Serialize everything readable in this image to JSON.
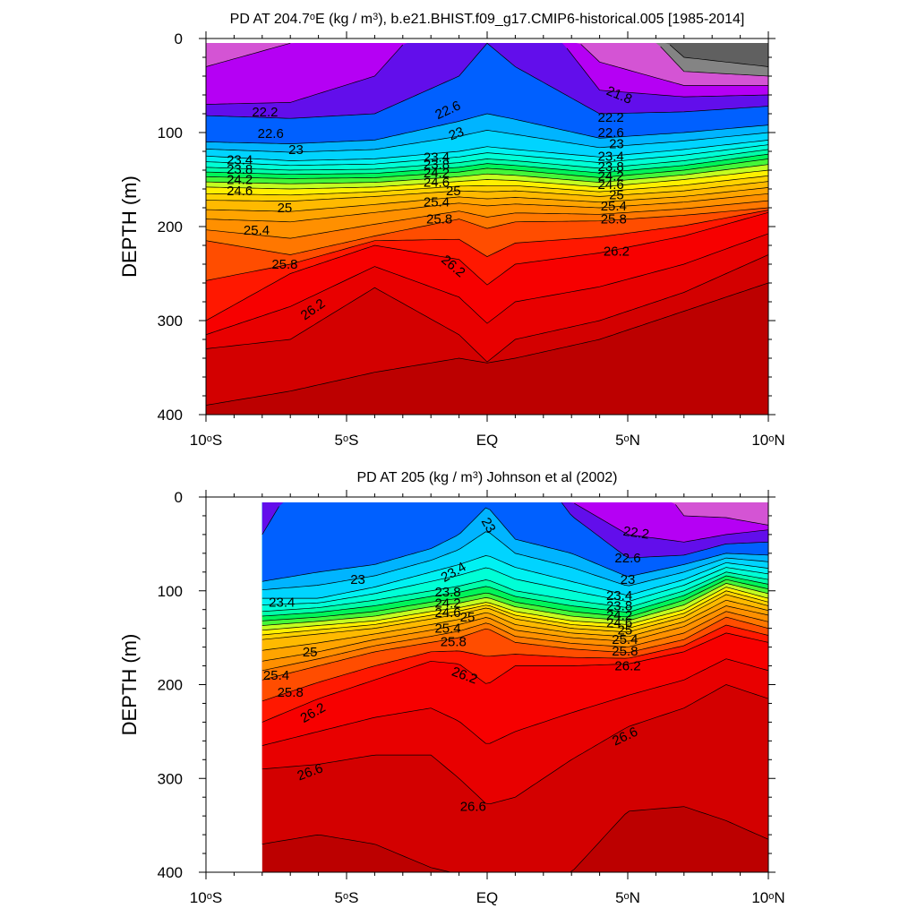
{
  "chart_data": [
    {
      "type": "contour",
      "title_parts": [
        "PD AT 204.7",
        "o",
        "E (kg / m",
        "3",
        "), b.e21.BHIST.f09_g17.CMIP6-historical.005 [1985-2014]"
      ],
      "ylabel": "DEPTH (m)",
      "xlim": [
        -10,
        10
      ],
      "ylim": [
        400,
        0
      ],
      "y_ticks": [
        "0",
        "100",
        "200",
        "300",
        "400"
      ],
      "x_ticks": [
        {
          "value": -10,
          "parts": [
            "10",
            "o",
            "S"
          ]
        },
        {
          "value": -5,
          "parts": [
            "5",
            "o",
            "S"
          ]
        },
        {
          "value": 0,
          "parts": [
            "EQ"
          ]
        },
        {
          "value": 5,
          "parts": [
            "5",
            "o",
            "N"
          ]
        },
        {
          "value": 10,
          "parts": [
            "10",
            "o",
            "N"
          ]
        }
      ],
      "data_lon_range": [
        -10,
        10
      ],
      "contour_levels": [
        21.0,
        21.4,
        21.8,
        22.2,
        22.6,
        23.0,
        23.2,
        23.4,
        23.6,
        23.8,
        24.0,
        24.2,
        24.4,
        24.6,
        24.8,
        25.0,
        25.2,
        25.4,
        25.6,
        25.8,
        26.0,
        26.2,
        26.4,
        26.6,
        26.8
      ],
      "contour_labels": [
        {
          "text": "21.8",
          "lon": 4.7,
          "depth": 60,
          "rot": 22
        },
        {
          "text": "22.2",
          "lon": -7.9,
          "depth": 78
        },
        {
          "text": "22.6",
          "lon": -7.7,
          "depth": 101
        },
        {
          "text": "23",
          "lon": -6.8,
          "depth": 118
        },
        {
          "text": "23.4",
          "lon": -8.8,
          "depth": 129
        },
        {
          "text": "23.8",
          "lon": -8.8,
          "depth": 139
        },
        {
          "text": "24.2",
          "lon": -8.8,
          "depth": 150
        },
        {
          "text": "24.6",
          "lon": -8.8,
          "depth": 162
        },
        {
          "text": "25",
          "lon": -7.2,
          "depth": 180
        },
        {
          "text": "25.4",
          "lon": -8.2,
          "depth": 204
        },
        {
          "text": "25.8",
          "lon": -7.2,
          "depth": 240
        },
        {
          "text": "26.2",
          "lon": -6.2,
          "depth": 288,
          "rot": -35
        },
        {
          "text": "22.6",
          "lon": -1.4,
          "depth": 76,
          "rot": -25
        },
        {
          "text": "23",
          "lon": -1.1,
          "depth": 101,
          "rot": -20
        },
        {
          "text": "23.4",
          "lon": -1.8,
          "depth": 126
        },
        {
          "text": "23.8",
          "lon": -1.8,
          "depth": 134
        },
        {
          "text": "24.2",
          "lon": -1.8,
          "depth": 143
        },
        {
          "text": "24.6",
          "lon": -1.8,
          "depth": 153
        },
        {
          "text": "25",
          "lon": -1.2,
          "depth": 162
        },
        {
          "text": "25.4",
          "lon": -1.8,
          "depth": 174
        },
        {
          "text": "25.8",
          "lon": -1.7,
          "depth": 192
        },
        {
          "text": "26.2",
          "lon": -1.2,
          "depth": 242,
          "rot": 40
        },
        {
          "text": "22.2",
          "lon": 4.4,
          "depth": 84
        },
        {
          "text": "22.6",
          "lon": 4.4,
          "depth": 100
        },
        {
          "text": "23",
          "lon": 4.6,
          "depth": 112
        },
        {
          "text": "23.4",
          "lon": 4.4,
          "depth": 125
        },
        {
          "text": "23.8",
          "lon": 4.4,
          "depth": 136
        },
        {
          "text": "24.2",
          "lon": 4.4,
          "depth": 146
        },
        {
          "text": "24.6",
          "lon": 4.4,
          "depth": 155
        },
        {
          "text": "25",
          "lon": 4.6,
          "depth": 166
        },
        {
          "text": "25.4",
          "lon": 4.5,
          "depth": 178
        },
        {
          "text": "25.8",
          "lon": 4.5,
          "depth": 192
        },
        {
          "text": "26.2",
          "lon": 4.6,
          "depth": 226
        }
      ]
    },
    {
      "type": "contour",
      "title_parts": [
        "PD AT 205 (kg / m",
        "3",
        ") Johnson et al (2002)"
      ],
      "ylabel": "DEPTH (m)",
      "xlim": [
        -10,
        10
      ],
      "ylim": [
        400,
        0
      ],
      "y_ticks": [
        "0",
        "100",
        "200",
        "300",
        "400"
      ],
      "x_ticks": [
        {
          "value": -10,
          "parts": [
            "10",
            "o",
            "S"
          ]
        },
        {
          "value": -5,
          "parts": [
            "5",
            "o",
            "S"
          ]
        },
        {
          "value": 0,
          "parts": [
            "EQ"
          ]
        },
        {
          "value": 5,
          "parts": [
            "5",
            "o",
            "N"
          ]
        },
        {
          "value": 10,
          "parts": [
            "10",
            "o",
            "N"
          ]
        }
      ],
      "data_lon_range": [
        -8,
        10
      ],
      "contour_levels": [
        21.8,
        22.2,
        22.6,
        23.0,
        23.2,
        23.4,
        23.6,
        23.8,
        24.0,
        24.2,
        24.4,
        24.6,
        24.8,
        25.0,
        25.2,
        25.4,
        25.6,
        25.8,
        26.0,
        26.2,
        26.4,
        26.6,
        26.8
      ],
      "contour_labels": [
        {
          "text": "22.2",
          "lon": 5.3,
          "depth": 38,
          "rot": 8
        },
        {
          "text": "22.6",
          "lon": 5.0,
          "depth": 65
        },
        {
          "text": "23",
          "lon": 0.05,
          "depth": 30,
          "rot": 60
        },
        {
          "text": "23",
          "lon": -4.6,
          "depth": 88
        },
        {
          "text": "23",
          "lon": 5.0,
          "depth": 88
        },
        {
          "text": "23.4",
          "lon": -1.2,
          "depth": 80,
          "rot": -30
        },
        {
          "text": "23.4",
          "lon": -7.3,
          "depth": 112
        },
        {
          "text": "23.8",
          "lon": -1.4,
          "depth": 101
        },
        {
          "text": "24.2",
          "lon": -1.4,
          "depth": 113
        },
        {
          "text": "24.6",
          "lon": -1.4,
          "depth": 123
        },
        {
          "text": "25",
          "lon": -0.7,
          "depth": 128
        },
        {
          "text": "25.4",
          "lon": -1.4,
          "depth": 140
        },
        {
          "text": "25.8",
          "lon": -1.2,
          "depth": 154
        },
        {
          "text": "26.2",
          "lon": -0.8,
          "depth": 190,
          "rot": 20
        },
        {
          "text": "25",
          "lon": -6.3,
          "depth": 165
        },
        {
          "text": "25.4",
          "lon": -7.5,
          "depth": 190
        },
        {
          "text": "25.8",
          "lon": -7.0,
          "depth": 208
        },
        {
          "text": "26.2",
          "lon": -6.2,
          "depth": 230,
          "rot": -30
        },
        {
          "text": "26.6",
          "lon": -6.3,
          "depth": 293,
          "rot": -20
        },
        {
          "text": "26.6",
          "lon": -0.5,
          "depth": 330
        },
        {
          "text": "26.6",
          "lon": 4.9,
          "depth": 255,
          "rot": -25
        },
        {
          "text": "23.4",
          "lon": 4.7,
          "depth": 105
        },
        {
          "text": "23.8",
          "lon": 4.7,
          "depth": 116
        },
        {
          "text": "24.2",
          "lon": 4.7,
          "depth": 126
        },
        {
          "text": "24.6",
          "lon": 4.7,
          "depth": 134
        },
        {
          "text": "25",
          "lon": 4.9,
          "depth": 142
        },
        {
          "text": "25.4",
          "lon": 4.9,
          "depth": 152
        },
        {
          "text": "25.8",
          "lon": 4.9,
          "depth": 164
        },
        {
          "text": "26.2",
          "lon": 5.0,
          "depth": 180
        }
      ]
    }
  ]
}
